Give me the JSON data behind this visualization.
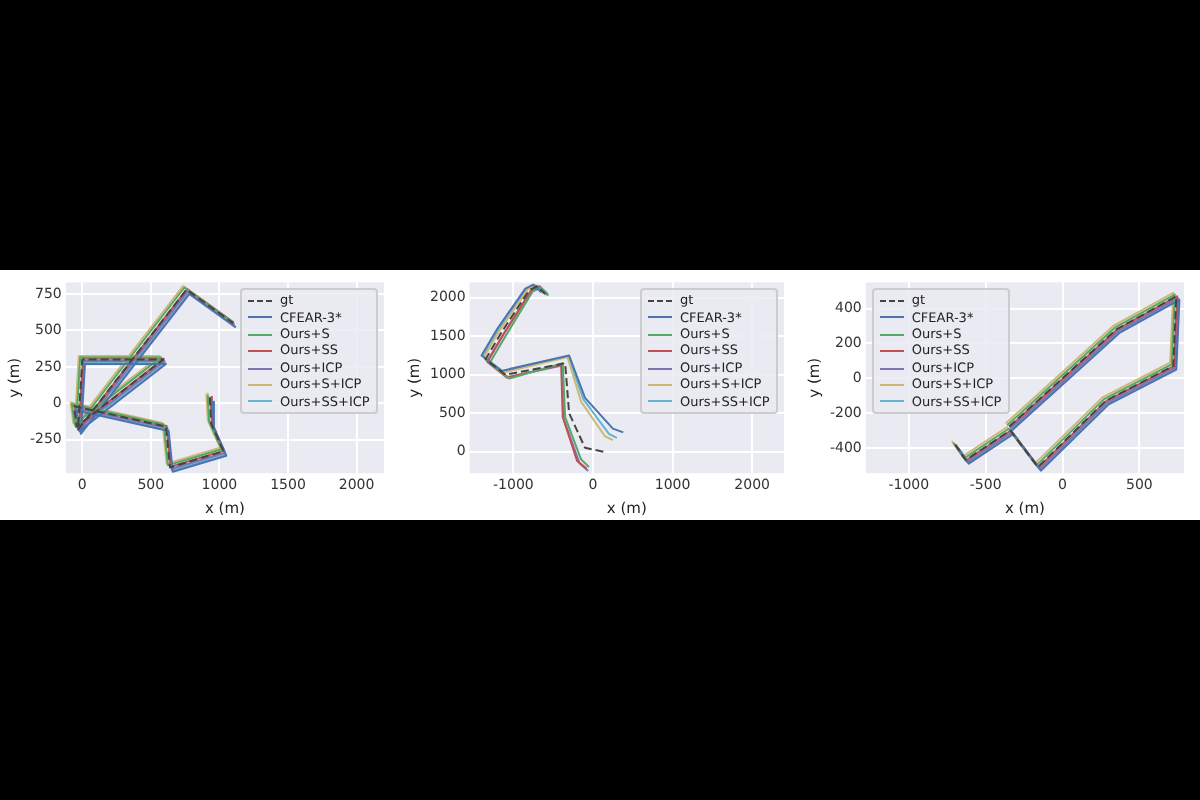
{
  "chart_data": [
    {
      "type": "line",
      "xlabel": "x (m)",
      "ylabel": "y (m)",
      "xlim": [
        -120,
        2200
      ],
      "xticks": [
        0,
        500,
        1000,
        1500,
        2000
      ],
      "ylim": [
        -480,
        830
      ],
      "yticks": [
        -250,
        0,
        250,
        500,
        750
      ],
      "grid": true,
      "legend": "top right",
      "marker": "none",
      "series": [
        {
          "name": "gt",
          "color": "#444444",
          "line_style": "dashed",
          "x": [
            930,
            940,
            1030,
            640,
            610,
            -60,
            -40,
            590,
            0,
            -30,
            760,
            1100
          ],
          "values": [
            40,
            -140,
            -330,
            -440,
            -160,
            -20,
            -160,
            300,
            300,
            -180,
            780,
            550
          ]
        },
        {
          "name": "CFEAR-3*",
          "color": "#4c72b0",
          "line_style": "solid",
          "x": [
            950,
            960,
            1050,
            660,
            630,
            -40,
            -20,
            610,
            20,
            -10,
            780,
            1120
          ],
          "values": [
            10,
            -170,
            -360,
            -470,
            -190,
            -50,
            -190,
            270,
            270,
            -210,
            750,
            520
          ]
        },
        {
          "name": "Ours+S",
          "color": "#55a868",
          "line_style": "solid",
          "x": [
            915,
            925,
            1015,
            625,
            595,
            -75,
            -55,
            575,
            -15,
            -45,
            745,
            1085
          ],
          "values": [
            55,
            -125,
            -315,
            -425,
            -145,
            -5,
            -145,
            315,
            315,
            -165,
            795,
            565
          ]
        },
        {
          "name": "Ours+SS",
          "color": "#c44e52",
          "line_style": "solid",
          "x": [
            935,
            945,
            1035,
            645,
            615,
            -55,
            -35,
            595,
            5,
            -25,
            765,
            1105
          ],
          "values": [
            45,
            -135,
            -325,
            -435,
            -155,
            -15,
            -155,
            305,
            305,
            -175,
            785,
            555
          ]
        },
        {
          "name": "Ours+ICP",
          "color": "#8172b3",
          "line_style": "solid",
          "x": [
            940,
            950,
            1040,
            650,
            620,
            -50,
            -30,
            600,
            10,
            -20,
            770,
            1110
          ],
          "values": [
            30,
            -150,
            -340,
            -450,
            -170,
            -30,
            -170,
            290,
            290,
            -190,
            770,
            540
          ]
        },
        {
          "name": "Ours+S+ICP",
          "color": "#ccb974",
          "line_style": "solid",
          "x": [
            905,
            915,
            1005,
            615,
            585,
            -85,
            -65,
            565,
            -25,
            -55,
            735,
            1075
          ],
          "values": [
            65,
            -115,
            -305,
            -415,
            -135,
            5,
            -135,
            325,
            325,
            -155,
            805,
            575
          ]
        },
        {
          "name": "Ours+SS+ICP",
          "color": "#64b5cd",
          "line_style": "solid",
          "x": [
            945,
            955,
            1045,
            655,
            625,
            -45,
            -25,
            605,
            15,
            -15,
            775,
            1115
          ],
          "values": [
            20,
            -160,
            -350,
            -460,
            -180,
            -40,
            -180,
            280,
            280,
            -200,
            760,
            530
          ]
        }
      ]
    },
    {
      "type": "line",
      "xlabel": "x (m)",
      "ylabel": "y (m)",
      "xlim": [
        -1550,
        2400
      ],
      "xticks": [
        -1000,
        0,
        1000,
        2000
      ],
      "ylim": [
        -280,
        2200
      ],
      "yticks": [
        0,
        500,
        1000,
        1500,
        2000
      ],
      "grid": true,
      "legend": "top right",
      "marker": "none",
      "series": [
        {
          "name": "gt",
          "color": "#444444",
          "line_style": "dashed",
          "x": [
            130,
            -100,
            -300,
            -350,
            -1100,
            -1350,
            -1150,
            -800,
            -700,
            -600
          ],
          "values": [
            0,
            50,
            500,
            1150,
            1000,
            1200,
            1550,
            2100,
            2150,
            2050
          ]
        },
        {
          "name": "CFEAR-3*",
          "color": "#4c72b0",
          "line_style": "solid",
          "x": [
            380,
            250,
            -100,
            -300,
            -1150,
            -1400,
            -1200,
            -850,
            -750,
            -650
          ],
          "values": [
            250,
            300,
            700,
            1250,
            1050,
            1250,
            1600,
            2120,
            2170,
            2070
          ]
        },
        {
          "name": "Ours+S",
          "color": "#55a868",
          "line_style": "solid",
          "x": [
            -50,
            -150,
            -350,
            -380,
            -1050,
            -1300,
            -1100,
            -760,
            -660,
            -560
          ],
          "values": [
            -200,
            -100,
            450,
            1150,
            950,
            1150,
            1500,
            2080,
            2130,
            2030
          ]
        },
        {
          "name": "Ours+SS",
          "color": "#c44e52",
          "line_style": "solid",
          "x": [
            -80,
            -200,
            -380,
            -400,
            -1080,
            -1330,
            -1130,
            -780,
            -680,
            -580
          ],
          "values": [
            -220,
            -120,
            450,
            1130,
            960,
            1170,
            1520,
            2090,
            2140,
            2040
          ]
        },
        {
          "name": "Ours+ICP",
          "color": "#8172b3",
          "line_style": "solid",
          "x": [
            -60,
            -170,
            -370,
            -390,
            -1070,
            -1320,
            -1120,
            -770,
            -670,
            -570
          ],
          "values": [
            -250,
            -150,
            430,
            1120,
            970,
            1180,
            1530,
            2100,
            2150,
            2050
          ]
        },
        {
          "name": "Ours+S+ICP",
          "color": "#ccb974",
          "line_style": "solid",
          "x": [
            250,
            150,
            -150,
            -320,
            -1120,
            -1370,
            -1170,
            -820,
            -720,
            -620
          ],
          "values": [
            150,
            200,
            650,
            1230,
            1030,
            1230,
            1580,
            2110,
            2160,
            2060
          ]
        },
        {
          "name": "Ours+SS+ICP",
          "color": "#64b5cd",
          "line_style": "solid",
          "x": [
            300,
            200,
            -120,
            -310,
            -1130,
            -1380,
            -1180,
            -830,
            -730,
            -630
          ],
          "values": [
            180,
            230,
            680,
            1240,
            1040,
            1240,
            1590,
            2115,
            2165,
            2065
          ]
        }
      ]
    },
    {
      "type": "line",
      "xlabel": "x (m)",
      "ylabel": "y (m)",
      "xlim": [
        -1280,
        790
      ],
      "xticks": [
        -1000,
        -500,
        0,
        500
      ],
      "ylim": [
        -545,
        550
      ],
      "yticks": [
        -400,
        -200,
        0,
        200,
        400
      ],
      "grid": true,
      "legend": "top left",
      "marker": "none",
      "series": [
        {
          "name": "gt",
          "color": "#444444",
          "line_style": "dashed",
          "x": [
            -700,
            -630,
            -340,
            -160,
            280,
            720,
            740,
            350,
            0,
            -350
          ],
          "values": [
            -380,
            -470,
            -300,
            -510,
            -130,
            70,
            470,
            280,
            0,
            -280
          ]
        },
        {
          "name": "CFEAR-3*",
          "color": "#4c72b0",
          "line_style": "solid",
          "x": [
            -680,
            -610,
            -320,
            -140,
            300,
            740,
            760,
            370,
            20,
            -330
          ],
          "values": [
            -400,
            -490,
            -320,
            -530,
            -150,
            50,
            450,
            260,
            -20,
            -300
          ]
        },
        {
          "name": "Ours+S",
          "color": "#55a868",
          "line_style": "solid",
          "x": [
            -710,
            -640,
            -350,
            -170,
            270,
            710,
            730,
            340,
            -10,
            -360
          ],
          "values": [
            -370,
            -460,
            -290,
            -500,
            -120,
            80,
            480,
            290,
            10,
            -270
          ]
        },
        {
          "name": "Ours+SS",
          "color": "#c44e52",
          "line_style": "solid",
          "x": [
            -695,
            -625,
            -335,
            -155,
            285,
            725,
            745,
            355,
            5,
            -345
          ],
          "values": [
            -380,
            -470,
            -300,
            -510,
            -130,
            70,
            470,
            280,
            0,
            -280
          ]
        },
        {
          "name": "Ours+ICP",
          "color": "#8172b3",
          "line_style": "solid",
          "x": [
            -690,
            -620,
            -330,
            -150,
            290,
            730,
            750,
            360,
            10,
            -340
          ],
          "values": [
            -390,
            -480,
            -310,
            -520,
            -140,
            60,
            460,
            270,
            -10,
            -290
          ]
        },
        {
          "name": "Ours+S+ICP",
          "color": "#ccb974",
          "line_style": "solid",
          "x": [
            -720,
            -650,
            -360,
            -180,
            260,
            700,
            720,
            330,
            -20,
            -370
          ],
          "values": [
            -360,
            -450,
            -280,
            -490,
            -110,
            90,
            490,
            300,
            20,
            -260
          ]
        },
        {
          "name": "Ours+SS+ICP",
          "color": "#64b5cd",
          "line_style": "solid",
          "x": [
            -685,
            -615,
            -325,
            -145,
            295,
            735,
            755,
            365,
            15,
            -335
          ],
          "values": [
            -395,
            -485,
            -315,
            -525,
            -145,
            55,
            455,
            265,
            -15,
            -295
          ]
        }
      ]
    }
  ]
}
